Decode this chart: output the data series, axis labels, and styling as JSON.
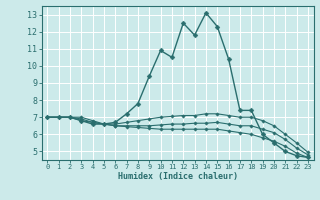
{
  "xlabel": "Humidex (Indice chaleur)",
  "bg_color": "#cceaea",
  "grid_color": "#ffffff",
  "line_color": "#2a6e6e",
  "xlim": [
    -0.5,
    23.5
  ],
  "ylim": [
    4.5,
    13.5
  ],
  "yticks": [
    5,
    6,
    7,
    8,
    9,
    10,
    11,
    12,
    13
  ],
  "xticks": [
    0,
    1,
    2,
    3,
    4,
    5,
    6,
    7,
    8,
    9,
    10,
    11,
    12,
    13,
    14,
    15,
    16,
    17,
    18,
    19,
    20,
    21,
    22,
    23
  ],
  "curves": [
    {
      "x": [
        0,
        1,
        2,
        3,
        4,
        5,
        6,
        7,
        8,
        9,
        10,
        11,
        12,
        13,
        14,
        15,
        16,
        17,
        18,
        19,
        20,
        21,
        22,
        23
      ],
      "y": [
        7.0,
        7.0,
        7.0,
        6.8,
        6.6,
        6.6,
        6.7,
        7.2,
        7.8,
        9.4,
        10.9,
        10.5,
        12.5,
        11.8,
        13.1,
        12.3,
        10.4,
        7.4,
        7.4,
        6.0,
        5.5,
        5.0,
        4.75,
        4.65
      ],
      "marker": "D",
      "markersize": 2.5,
      "lw": 1.0
    },
    {
      "x": [
        0,
        1,
        2,
        3,
        4,
        5,
        6,
        7,
        8,
        9,
        10,
        11,
        12,
        13,
        14,
        15,
        16,
        17,
        18,
        19,
        20,
        21,
        22,
        23
      ],
      "y": [
        7.0,
        7.0,
        7.0,
        7.0,
        6.8,
        6.6,
        6.6,
        6.7,
        6.8,
        6.9,
        7.0,
        7.05,
        7.1,
        7.1,
        7.2,
        7.2,
        7.1,
        7.0,
        7.0,
        6.8,
        6.5,
        6.0,
        5.5,
        4.95
      ],
      "marker": "D",
      "markersize": 1.8,
      "lw": 0.8
    },
    {
      "x": [
        0,
        1,
        2,
        3,
        4,
        5,
        6,
        7,
        8,
        9,
        10,
        11,
        12,
        13,
        14,
        15,
        16,
        17,
        18,
        19,
        20,
        21,
        22,
        23
      ],
      "y": [
        7.0,
        7.0,
        7.0,
        6.9,
        6.7,
        6.6,
        6.5,
        6.5,
        6.5,
        6.5,
        6.55,
        6.6,
        6.6,
        6.65,
        6.65,
        6.7,
        6.6,
        6.5,
        6.5,
        6.3,
        6.1,
        5.7,
        5.2,
        4.8
      ],
      "marker": "D",
      "markersize": 1.8,
      "lw": 0.8
    },
    {
      "x": [
        0,
        1,
        2,
        3,
        4,
        5,
        6,
        7,
        8,
        9,
        10,
        11,
        12,
        13,
        14,
        15,
        16,
        17,
        18,
        19,
        20,
        21,
        22,
        23
      ],
      "y": [
        7.0,
        7.0,
        7.0,
        6.8,
        6.7,
        6.6,
        6.5,
        6.45,
        6.4,
        6.35,
        6.3,
        6.3,
        6.3,
        6.3,
        6.3,
        6.3,
        6.2,
        6.1,
        6.0,
        5.8,
        5.6,
        5.3,
        4.9,
        4.65
      ],
      "marker": "D",
      "markersize": 1.8,
      "lw": 0.8
    }
  ]
}
